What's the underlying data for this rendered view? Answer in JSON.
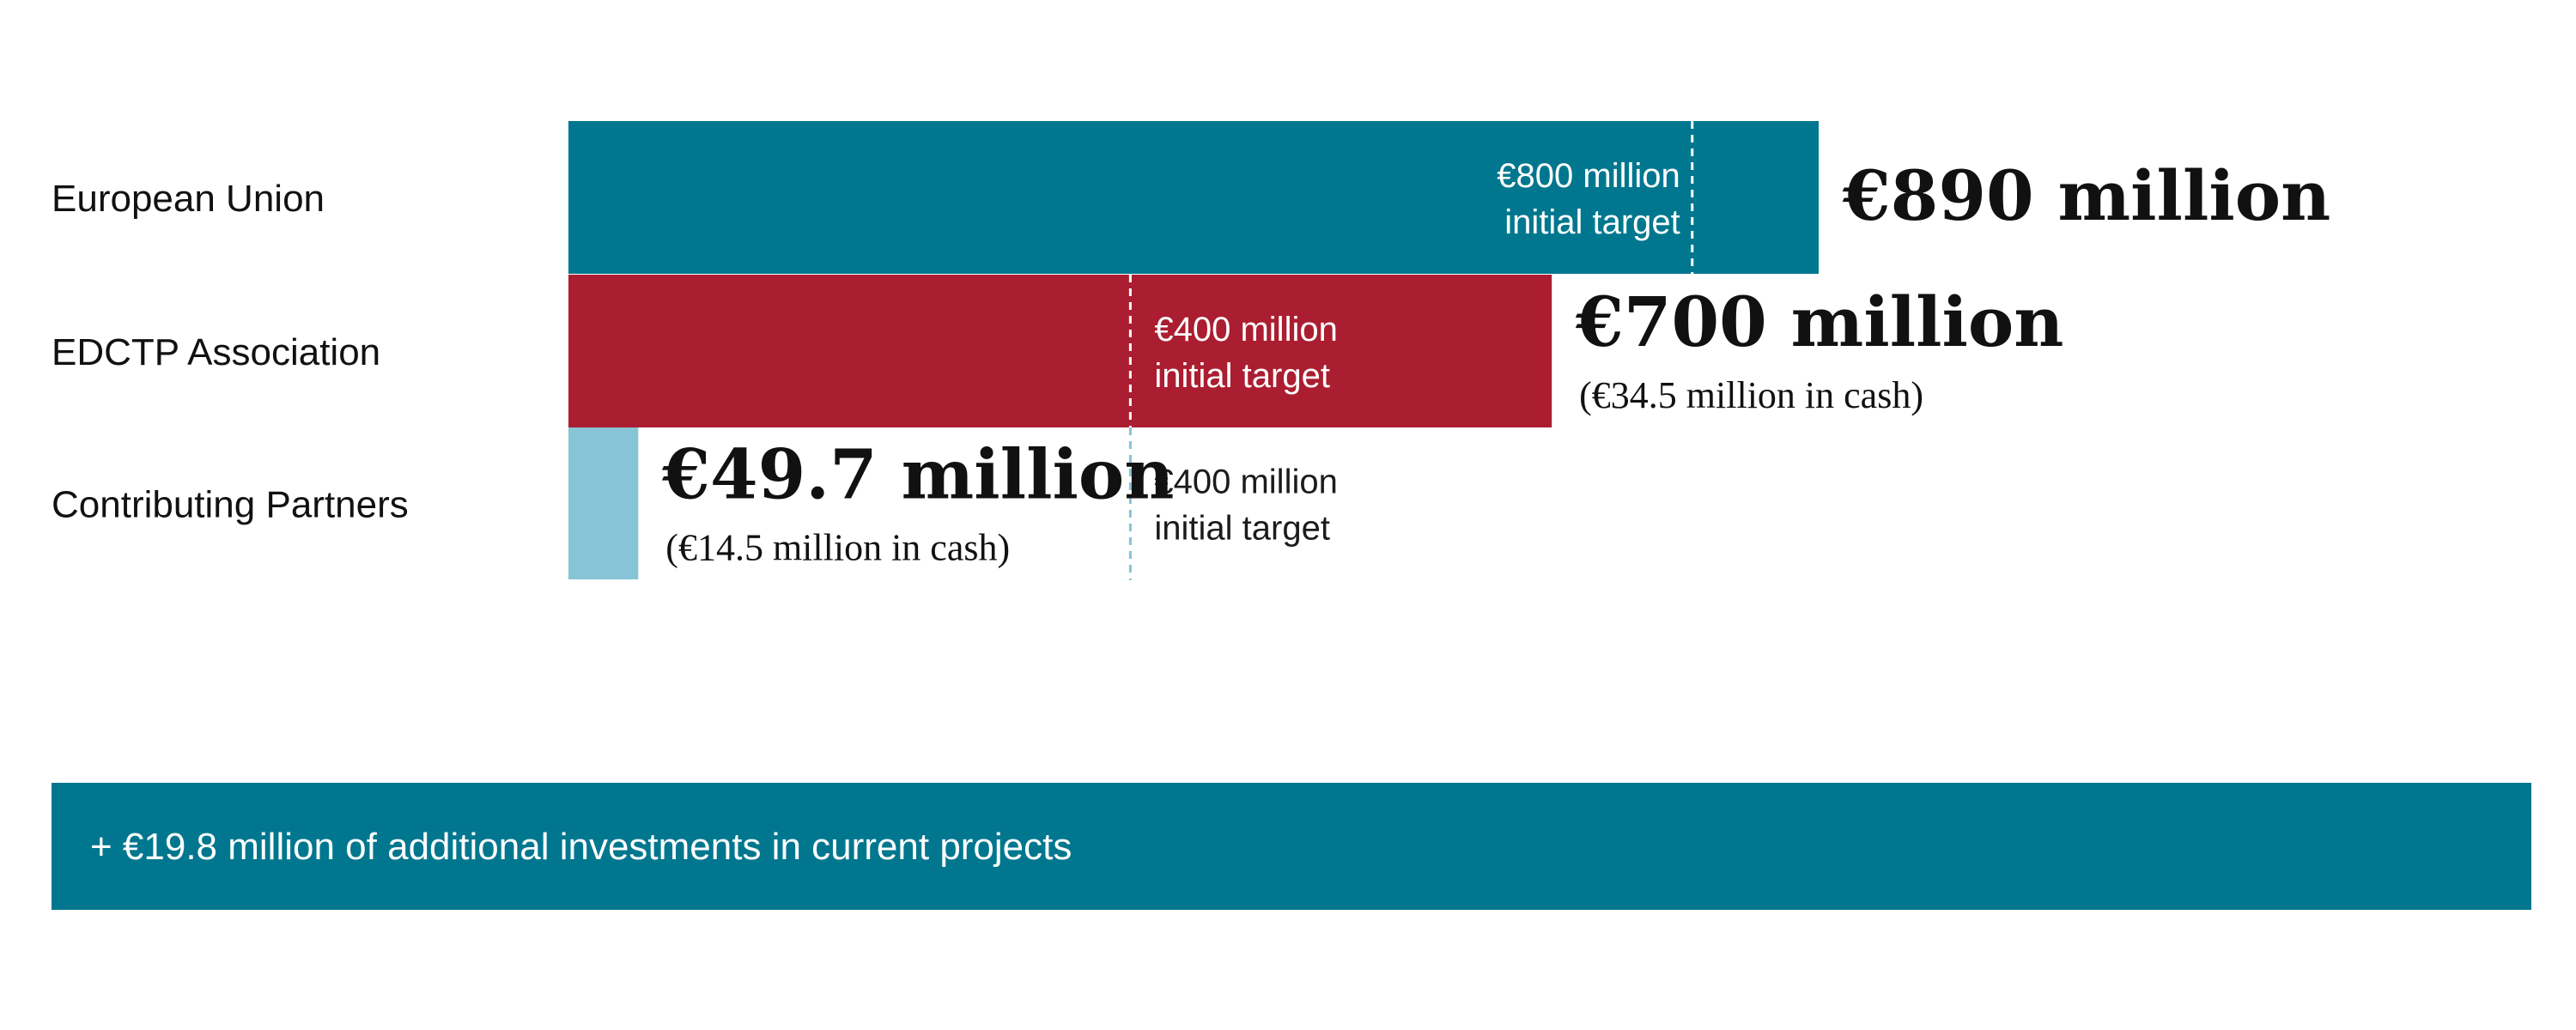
{
  "chart_data": {
    "type": "bar",
    "orientation": "horizontal",
    "unit": "€ million",
    "categories": [
      "European Union",
      "EDCTP Association",
      "Contributing Partners"
    ],
    "values": [
      890,
      700,
      49.7
    ],
    "value_labels": [
      "€890 million",
      "€700 million",
      "€49.7 million"
    ],
    "sub_labels": [
      "",
      "(€34.5 million in cash)",
      "(€14.5 million in cash)"
    ],
    "targets": [
      {
        "category": "European Union",
        "value": 800,
        "label_lines": [
          "€800 million",
          "initial target"
        ]
      },
      {
        "category": "EDCTP Association",
        "value": 400,
        "label_lines": [
          "€400 million",
          "initial target"
        ]
      },
      {
        "category": "Contributing Partners",
        "value": 400,
        "label_lines": [
          "€400 million",
          "initial target"
        ]
      }
    ],
    "colors": [
      "#00778f",
      "#ab1d30",
      "#86c4d6"
    ],
    "label_text_color": "#1b1b1b",
    "grid": false,
    "legend": "none"
  },
  "banner": {
    "text": "+ €19.8 million of additional investments in current projects",
    "color": "#00778f"
  }
}
